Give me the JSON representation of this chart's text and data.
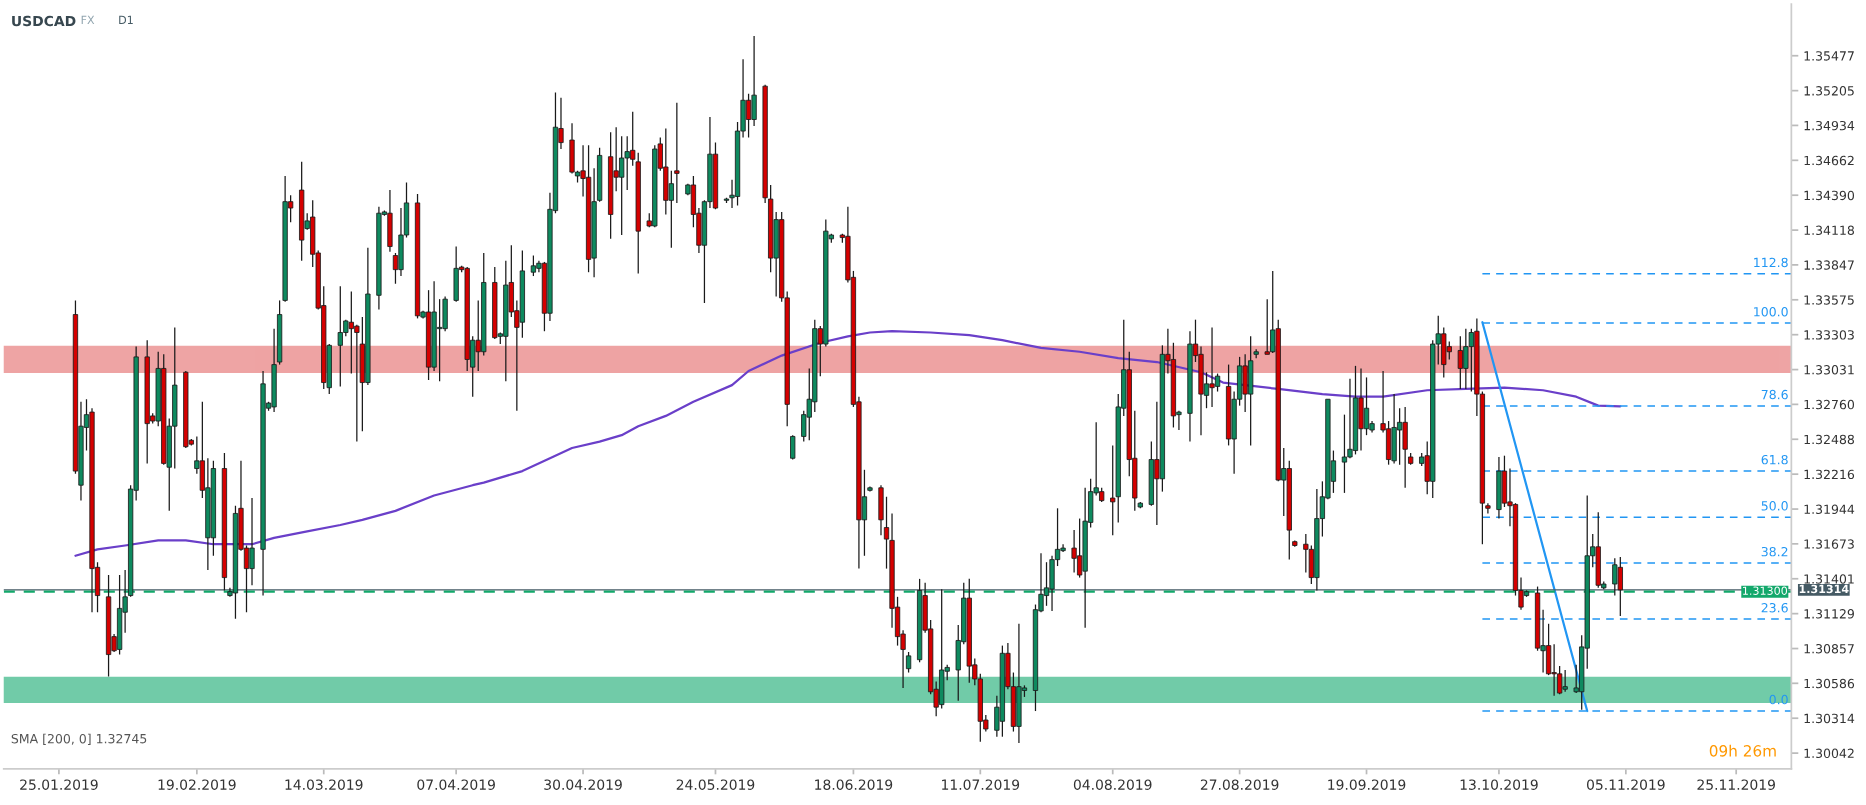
{
  "chart_data": {
    "type": "candlestick",
    "title": "USDCAD",
    "annotations": [
      "FX",
      "D1",
      "SMA [200, 0] 1.32745",
      "09h 26m"
    ],
    "x": [
      "2019-01-28",
      "2019-01-29",
      "2019-01-30",
      "2019-01-31",
      "2019-02-01",
      "2019-02-03",
      "2019-02-04",
      "2019-02-05",
      "2019-02-06",
      "2019-02-07",
      "2019-02-08",
      "2019-02-10",
      "2019-02-11",
      "2019-02-12",
      "2019-02-13",
      "2019-02-14",
      "2019-02-15",
      "2019-02-17",
      "2019-02-18",
      "2019-02-19",
      "2019-02-20",
      "2019-02-21",
      "2019-02-22",
      "2019-02-24",
      "2019-02-25",
      "2019-02-26",
      "2019-02-27",
      "2019-02-28",
      "2019-03-01",
      "2019-03-03",
      "2019-03-04",
      "2019-03-05",
      "2019-03-06",
      "2019-03-07",
      "2019-03-08",
      "2019-03-10",
      "2019-03-11",
      "2019-03-12",
      "2019-03-13",
      "2019-03-14",
      "2019-03-15",
      "2019-03-17",
      "2019-03-18",
      "2019-03-19",
      "2019-03-20",
      "2019-03-21",
      "2019-03-22",
      "2019-03-24",
      "2019-03-25",
      "2019-03-26",
      "2019-03-27",
      "2019-03-28",
      "2019-03-29",
      "2019-03-31",
      "2019-04-01",
      "2019-04-02",
      "2019-04-03",
      "2019-04-04",
      "2019-04-05",
      "2019-04-07",
      "2019-04-08",
      "2019-04-09",
      "2019-04-10",
      "2019-04-11",
      "2019-04-12",
      "2019-04-14",
      "2019-04-15",
      "2019-04-16",
      "2019-04-17",
      "2019-04-18",
      "2019-04-19",
      "2019-04-21",
      "2019-04-22",
      "2019-04-23",
      "2019-04-24",
      "2019-04-25",
      "2019-04-26",
      "2019-04-28",
      "2019-04-29",
      "2019-04-30",
      "2019-05-01",
      "2019-05-02",
      "2019-05-03",
      "2019-05-05",
      "2019-05-06",
      "2019-05-07",
      "2019-05-08",
      "2019-05-09",
      "2019-05-10",
      "2019-05-12",
      "2019-05-13",
      "2019-05-14",
      "2019-05-15",
      "2019-05-16",
      "2019-05-17",
      "2019-05-19",
      "2019-05-20",
      "2019-05-21",
      "2019-05-22",
      "2019-05-23",
      "2019-05-24",
      "2019-05-26",
      "2019-05-27",
      "2019-05-28",
      "2019-05-29",
      "2019-05-30",
      "2019-05-31",
      "2019-06-02",
      "2019-06-03",
      "2019-06-04",
      "2019-06-05",
      "2019-06-06",
      "2019-06-07",
      "2019-06-09",
      "2019-06-10",
      "2019-06-11",
      "2019-06-12",
      "2019-06-13",
      "2019-06-14",
      "2019-06-16",
      "2019-06-17",
      "2019-06-18",
      "2019-06-19",
      "2019-06-20",
      "2019-06-21",
      "2019-06-23",
      "2019-06-24",
      "2019-06-25",
      "2019-06-26",
      "2019-06-27",
      "2019-06-28",
      "2019-06-30",
      "2019-07-01",
      "2019-07-02",
      "2019-07-03",
      "2019-07-04",
      "2019-07-05",
      "2019-07-07",
      "2019-07-08",
      "2019-07-09",
      "2019-07-10",
      "2019-07-11",
      "2019-07-12",
      "2019-07-14",
      "2019-07-15",
      "2019-07-16",
      "2019-07-17",
      "2019-07-18",
      "2019-07-19",
      "2019-07-21",
      "2019-07-22",
      "2019-07-23",
      "2019-07-24",
      "2019-07-25",
      "2019-07-26",
      "2019-07-28",
      "2019-07-29",
      "2019-07-30",
      "2019-07-31",
      "2019-08-01",
      "2019-08-02",
      "2019-08-04",
      "2019-08-05",
      "2019-08-06",
      "2019-08-07",
      "2019-08-08",
      "2019-08-09",
      "2019-08-11",
      "2019-08-12",
      "2019-08-13",
      "2019-08-14",
      "2019-08-15",
      "2019-08-16",
      "2019-08-18",
      "2019-08-19",
      "2019-08-20",
      "2019-08-21",
      "2019-08-22",
      "2019-08-23",
      "2019-08-25",
      "2019-08-26",
      "2019-08-27",
      "2019-08-28",
      "2019-08-29",
      "2019-08-30",
      "2019-09-01",
      "2019-09-02",
      "2019-09-03",
      "2019-09-04",
      "2019-09-05",
      "2019-09-06",
      "2019-09-08",
      "2019-09-09",
      "2019-09-10",
      "2019-09-11",
      "2019-09-12",
      "2019-09-13",
      "2019-09-15",
      "2019-09-16",
      "2019-09-17",
      "2019-09-18",
      "2019-09-19",
      "2019-09-20",
      "2019-09-22",
      "2019-09-23",
      "2019-09-24",
      "2019-09-25",
      "2019-09-26",
      "2019-09-27",
      "2019-09-29",
      "2019-09-30",
      "2019-10-01",
      "2019-10-02",
      "2019-10-03",
      "2019-10-04",
      "2019-10-06",
      "2019-10-07",
      "2019-10-08",
      "2019-10-09",
      "2019-10-10",
      "2019-10-11",
      "2019-10-13",
      "2019-10-14",
      "2019-10-15",
      "2019-10-16",
      "2019-10-17",
      "2019-10-18",
      "2019-10-20",
      "2019-10-21",
      "2019-10-22",
      "2019-10-23",
      "2019-10-24",
      "2019-10-25",
      "2019-10-27",
      "2019-10-28",
      "2019-10-29",
      "2019-10-30",
      "2019-10-31",
      "2019-11-01",
      "2019-11-03",
      "2019-11-04"
    ],
    "ohlc": [
      [
        1.3346,
        1.3357,
        1.3222,
        1.3224
      ],
      [
        1.3213,
        1.3278,
        1.3201,
        1.3259
      ],
      [
        1.3258,
        1.328,
        1.324,
        1.3268
      ],
      [
        1.327,
        1.3273,
        1.3114,
        1.3148
      ],
      [
        1.3149,
        1.3153,
        1.3114,
        1.3127
      ],
      [
        1.3126,
        1.3143,
        1.3064,
        1.3081
      ],
      [
        1.3095,
        1.3097,
        1.3083,
        1.3084
      ],
      [
        1.3085,
        1.3143,
        1.3081,
        1.3117
      ],
      [
        1.3114,
        1.3147,
        1.3098,
        1.3126
      ],
      [
        1.3127,
        1.3213,
        1.3126,
        1.321
      ],
      [
        1.3209,
        1.3321,
        1.3201,
        1.3313
      ],
      [
        1.3313,
        1.3326,
        1.323,
        1.3261
      ],
      [
        1.3267,
        1.3269,
        1.3261,
        1.3263
      ],
      [
        1.3263,
        1.3317,
        1.3259,
        1.3304
      ],
      [
        1.3304,
        1.3315,
        1.3229,
        1.323
      ],
      [
        1.3227,
        1.3265,
        1.3193,
        1.3259
      ],
      [
        1.3259,
        1.3336,
        1.3226,
        1.3291
      ],
      [
        1.3301,
        1.3302,
        1.3242,
        1.3243
      ],
      [
        1.3248,
        1.3249,
        1.3244,
        1.3245
      ],
      [
        1.3226,
        1.3251,
        1.3222,
        1.3232
      ],
      [
        1.3232,
        1.3278,
        1.3203,
        1.3209
      ],
      [
        1.3172,
        1.3234,
        1.3147,
        1.3211
      ],
      [
        1.3172,
        1.3232,
        1.3158,
        1.3226
      ],
      [
        1.3226,
        1.3238,
        1.3131,
        1.3141
      ],
      [
        1.3127,
        1.3133,
        1.3126,
        1.313
      ],
      [
        1.3129,
        1.3197,
        1.3109,
        1.3191
      ],
      [
        1.3195,
        1.3232,
        1.3162,
        1.3163
      ],
      [
        1.3164,
        1.3166,
        1.3114,
        1.3148
      ],
      [
        1.3148,
        1.3203,
        1.3135,
        1.3164
      ],
      [
        1.3163,
        1.3302,
        1.3127,
        1.3292
      ],
      [
        1.3273,
        1.3278,
        1.3271,
        1.3277
      ],
      [
        1.3274,
        1.3335,
        1.327,
        1.3307
      ],
      [
        1.3309,
        1.3357,
        1.3307,
        1.3346
      ],
      [
        1.3357,
        1.3454,
        1.3356,
        1.3434
      ],
      [
        1.3434,
        1.3439,
        1.3418,
        1.3429
      ],
      [
        1.3443,
        1.3465,
        1.3388,
        1.3404
      ],
      [
        1.3413,
        1.3425,
        1.3412,
        1.3419
      ],
      [
        1.3422,
        1.3435,
        1.3383,
        1.3393
      ],
      [
        1.3394,
        1.3396,
        1.335,
        1.3351
      ],
      [
        1.3353,
        1.3368,
        1.3288,
        1.3293
      ],
      [
        1.3289,
        1.3323,
        1.3284,
        1.3322
      ],
      [
        1.3322,
        1.3368,
        1.329,
        1.3332
      ],
      [
        1.3332,
        1.3342,
        1.3329,
        1.3341
      ],
      [
        1.334,
        1.3364,
        1.33,
        1.3335
      ],
      [
        1.3337,
        1.3338,
        1.3247,
        1.3332
      ],
      [
        1.3323,
        1.3344,
        1.3255,
        1.3293
      ],
      [
        1.3293,
        1.3398,
        1.3291,
        1.3362
      ],
      [
        1.3361,
        1.343,
        1.335,
        1.3425
      ],
      [
        1.3424,
        1.3427,
        1.3423,
        1.3426
      ],
      [
        1.3425,
        1.3443,
        1.3395,
        1.3399
      ],
      [
        1.3392,
        1.3394,
        1.337,
        1.3381
      ],
      [
        1.3381,
        1.3429,
        1.3376,
        1.3408
      ],
      [
        1.3408,
        1.3449,
        1.3406,
        1.3433
      ],
      [
        1.3433,
        1.344,
        1.3343,
        1.3345
      ],
      [
        1.3344,
        1.3349,
        1.3343,
        1.3348
      ],
      [
        1.3348,
        1.3365,
        1.3295,
        1.3305
      ],
      [
        1.3305,
        1.3372,
        1.3302,
        1.3348
      ],
      [
        1.3335,
        1.3358,
        1.3294,
        1.3336
      ],
      [
        1.3335,
        1.336,
        1.3333,
        1.3358
      ],
      [
        1.3357,
        1.3399,
        1.3356,
        1.3382
      ],
      [
        1.3383,
        1.3384,
        1.3379,
        1.3381
      ],
      [
        1.3382,
        1.3383,
        1.3302,
        1.3311
      ],
      [
        1.3305,
        1.3329,
        1.3282,
        1.3326
      ],
      [
        1.3326,
        1.3357,
        1.3302,
        1.3317
      ],
      [
        1.3317,
        1.3394,
        1.3314,
        1.3371
      ],
      [
        1.3371,
        1.3383,
        1.3327,
        1.3328
      ],
      [
        1.3329,
        1.3332,
        1.3323,
        1.3331
      ],
      [
        1.3329,
        1.3388,
        1.3294,
        1.3369
      ],
      [
        1.3371,
        1.34,
        1.3344,
        1.3348
      ],
      [
        1.3349,
        1.3357,
        1.3271,
        1.3336
      ],
      [
        1.334,
        1.3396,
        1.3328,
        1.338
      ],
      [
        1.3379,
        1.3392,
        1.3376,
        1.3384
      ],
      [
        1.3382,
        1.3388,
        1.3379,
        1.3386
      ],
      [
        1.3386,
        1.3387,
        1.3333,
        1.3347
      ],
      [
        1.3347,
        1.3441,
        1.3341,
        1.3428
      ],
      [
        1.3427,
        1.3519,
        1.3425,
        1.3492
      ],
      [
        1.3491,
        1.3515,
        1.3475,
        1.348
      ],
      [
        1.3482,
        1.3495,
        1.3456,
        1.3457
      ],
      [
        1.3454,
        1.3458,
        1.3449,
        1.3457
      ],
      [
        1.3458,
        1.3478,
        1.3438,
        1.3452
      ],
      [
        1.3453,
        1.3478,
        1.3379,
        1.3389
      ],
      [
        1.339,
        1.346,
        1.3375,
        1.3434
      ],
      [
        1.3435,
        1.3476,
        1.3434,
        1.347
      ],
      [
        1.3469,
        1.3488,
        1.3405,
        1.3424
      ],
      [
        1.3458,
        1.3492,
        1.3442,
        1.3453
      ],
      [
        1.3453,
        1.3485,
        1.3408,
        1.3468
      ],
      [
        1.3468,
        1.3485,
        1.3443,
        1.3473
      ],
      [
        1.3474,
        1.3504,
        1.3462,
        1.3467
      ],
      [
        1.3465,
        1.3472,
        1.3378,
        1.3411
      ],
      [
        1.3419,
        1.3425,
        1.3414,
        1.3415
      ],
      [
        1.3415,
        1.3478,
        1.3414,
        1.3475
      ],
      [
        1.3479,
        1.3484,
        1.3458,
        1.346
      ],
      [
        1.3461,
        1.3491,
        1.3424,
        1.3435
      ],
      [
        1.3435,
        1.3458,
        1.3398,
        1.3448
      ],
      [
        1.3458,
        1.3511,
        1.3433,
        1.3456
      ],
      [
        1.344,
        1.3448,
        1.3439,
        1.3447
      ],
      [
        1.3447,
        1.3454,
        1.3414,
        1.3424
      ],
      [
        1.3425,
        1.3429,
        1.3394,
        1.34
      ],
      [
        1.34,
        1.3435,
        1.3355,
        1.3434
      ],
      [
        1.3434,
        1.35,
        1.3429,
        1.3471
      ],
      [
        1.3471,
        1.348,
        1.3428,
        1.3429
      ],
      [
        1.3435,
        1.3437,
        1.3433,
        1.3436
      ],
      [
        1.3437,
        1.3451,
        1.3429,
        1.3439
      ],
      [
        1.3438,
        1.3496,
        1.3431,
        1.3489
      ],
      [
        1.3489,
        1.3545,
        1.3484,
        1.3513
      ],
      [
        1.3513,
        1.3518,
        1.3484,
        1.3498
      ],
      [
        1.3498,
        1.3563,
        1.3493,
        1.3517
      ],
      [
        1.3524,
        1.3525,
        1.3433,
        1.3437
      ],
      [
        1.3436,
        1.3447,
        1.3379,
        1.339
      ],
      [
        1.339,
        1.3426,
        1.336,
        1.342
      ],
      [
        1.342,
        1.3426,
        1.3356,
        1.3359
      ],
      [
        1.3359,
        1.3364,
        1.3259,
        1.3276
      ],
      [
        1.3234,
        1.3252,
        1.3233,
        1.3251
      ],
      [
        1.3251,
        1.3271,
        1.3247,
        1.3268
      ],
      [
        1.3266,
        1.3304,
        1.3248,
        1.328
      ],
      [
        1.3278,
        1.3342,
        1.327,
        1.3335
      ],
      [
        1.3335,
        1.3337,
        1.3298,
        1.3323
      ],
      [
        1.3323,
        1.342,
        1.3321,
        1.3411
      ],
      [
        1.3405,
        1.3409,
        1.3402,
        1.3408
      ],
      [
        1.3408,
        1.3409,
        1.3402,
        1.3406
      ],
      [
        1.3407,
        1.343,
        1.3371,
        1.3373
      ],
      [
        1.3375,
        1.338,
        1.3274,
        1.3276
      ],
      [
        1.3278,
        1.3282,
        1.3148,
        1.3186
      ],
      [
        1.3186,
        1.3225,
        1.3158,
        1.3204
      ],
      [
        1.3209,
        1.3212,
        1.3208,
        1.3211
      ],
      [
        1.3211,
        1.3213,
        1.3174,
        1.3186
      ],
      [
        1.318,
        1.3204,
        1.3148,
        1.3171
      ],
      [
        1.317,
        1.3191,
        1.3102,
        1.3117
      ],
      [
        1.3118,
        1.3126,
        1.3088,
        1.3095
      ],
      [
        1.3097,
        1.31,
        1.3055,
        1.3085
      ],
      [
        1.307,
        1.3083,
        1.3067,
        1.308
      ],
      [
        1.3077,
        1.314,
        1.3075,
        1.3131
      ],
      [
        1.3127,
        1.3137,
        1.3098,
        1.31
      ],
      [
        1.3101,
        1.3108,
        1.305,
        1.3052
      ],
      [
        1.3054,
        1.306,
        1.3033,
        1.304
      ],
      [
        1.3042,
        1.3132,
        1.3039,
        1.3069
      ],
      [
        1.3068,
        1.3073,
        1.3061,
        1.3071
      ],
      [
        1.3069,
        1.3104,
        1.3045,
        1.3092
      ],
      [
        1.3091,
        1.3137,
        1.3089,
        1.3125
      ],
      [
        1.3125,
        1.314,
        1.3059,
        1.3072
      ],
      [
        1.3073,
        1.3078,
        1.3057,
        1.3062
      ],
      [
        1.3062,
        1.3066,
        1.3013,
        1.3029
      ],
      [
        1.303,
        1.3034,
        1.3021,
        1.3023
      ],
      [
        1.3022,
        1.3049,
        1.3017,
        1.304
      ],
      [
        1.3029,
        1.3088,
        1.3017,
        1.3082
      ],
      [
        1.3082,
        1.309,
        1.3054,
        1.3056
      ],
      [
        1.3056,
        1.3067,
        1.3021,
        1.3025
      ],
      [
        1.3025,
        1.3105,
        1.3012,
        1.3056
      ],
      [
        1.3053,
        1.3057,
        1.3048,
        1.3055
      ],
      [
        1.3053,
        1.312,
        1.3037,
        1.3116
      ],
      [
        1.3115,
        1.316,
        1.3114,
        1.3128
      ],
      [
        1.3127,
        1.3153,
        1.3119,
        1.3133
      ],
      [
        1.3132,
        1.3158,
        1.3115,
        1.3155
      ],
      [
        1.3155,
        1.3195,
        1.315,
        1.3163
      ],
      [
        1.3162,
        1.3167,
        1.3161,
        1.3164
      ],
      [
        1.3164,
        1.3178,
        1.3145,
        1.3156
      ],
      [
        1.3158,
        1.3187,
        1.3141,
        1.3143
      ],
      [
        1.3146,
        1.3211,
        1.3102,
        1.3185
      ],
      [
        1.3184,
        1.3218,
        1.318,
        1.3208
      ],
      [
        1.3207,
        1.3262,
        1.3205,
        1.3211
      ],
      [
        1.3208,
        1.3211,
        1.32,
        1.3201
      ],
      [
        1.3203,
        1.3244,
        1.3174,
        1.32
      ],
      [
        1.3204,
        1.3284,
        1.3184,
        1.3274
      ],
      [
        1.3273,
        1.3342,
        1.3267,
        1.3303
      ],
      [
        1.3303,
        1.3317,
        1.322,
        1.3233
      ],
      [
        1.3234,
        1.3271,
        1.3193,
        1.3203
      ],
      [
        1.3196,
        1.32,
        1.3195,
        1.3199
      ],
      [
        1.3198,
        1.3247,
        1.3197,
        1.3233
      ],
      [
        1.3233,
        1.3278,
        1.3182,
        1.3218
      ],
      [
        1.3218,
        1.3322,
        1.3208,
        1.3315
      ],
      [
        1.3315,
        1.3335,
        1.33,
        1.331
      ],
      [
        1.3311,
        1.3324,
        1.3258,
        1.3267
      ],
      [
        1.3268,
        1.3271,
        1.3256,
        1.327
      ],
      [
        1.3269,
        1.3333,
        1.3247,
        1.3323
      ],
      [
        1.3323,
        1.3342,
        1.3309,
        1.3314
      ],
      [
        1.3315,
        1.3321,
        1.3252,
        1.3284
      ],
      [
        1.3283,
        1.3301,
        1.3273,
        1.3292
      ],
      [
        1.3292,
        1.3336,
        1.3274,
        1.3289
      ],
      [
        1.329,
        1.33,
        1.3286,
        1.3298
      ],
      [
        1.329,
        1.3307,
        1.3244,
        1.3249
      ],
      [
        1.3249,
        1.3286,
        1.3222,
        1.328
      ],
      [
        1.328,
        1.3313,
        1.3275,
        1.3306
      ],
      [
        1.3306,
        1.3315,
        1.327,
        1.3284
      ],
      [
        1.3284,
        1.3329,
        1.3244,
        1.331
      ],
      [
        1.3315,
        1.3319,
        1.3312,
        1.3317
      ],
      [
        1.3317,
        1.3358,
        1.3315,
        1.3315
      ],
      [
        1.3317,
        1.338,
        1.3316,
        1.3334
      ],
      [
        1.3335,
        1.3342,
        1.3216,
        1.3217
      ],
      [
        1.3217,
        1.3242,
        1.3189,
        1.3226
      ],
      [
        1.3226,
        1.3232,
        1.3155,
        1.3178
      ],
      [
        1.3169,
        1.317,
        1.3165,
        1.3166
      ],
      [
        1.3167,
        1.3175,
        1.3145,
        1.3163
      ],
      [
        1.3163,
        1.3166,
        1.3136,
        1.3141
      ],
      [
        1.3141,
        1.321,
        1.3131,
        1.3187
      ],
      [
        1.3187,
        1.3216,
        1.3173,
        1.3204
      ],
      [
        1.3203,
        1.328,
        1.3202,
        1.328
      ],
      [
        1.3216,
        1.324,
        1.3207,
        1.3232
      ],
      [
        1.3231,
        1.3268,
        1.3207,
        1.3235
      ],
      [
        1.3235,
        1.3296,
        1.3234,
        1.3241
      ],
      [
        1.324,
        1.3306,
        1.3237,
        1.3281
      ],
      [
        1.3281,
        1.3304,
        1.324,
        1.3257
      ],
      [
        1.3257,
        1.3297,
        1.3252,
        1.3273
      ],
      [
        1.3256,
        1.3263,
        1.3254,
        1.3261
      ],
      [
        1.3261,
        1.3302,
        1.3254,
        1.3256
      ],
      [
        1.3257,
        1.3263,
        1.3229,
        1.3233
      ],
      [
        1.3232,
        1.3284,
        1.323,
        1.3258
      ],
      [
        1.3256,
        1.3273,
        1.3229,
        1.3262
      ],
      [
        1.3262,
        1.3274,
        1.3211,
        1.3241
      ],
      [
        1.3235,
        1.3238,
        1.3229,
        1.323
      ],
      [
        1.323,
        1.3238,
        1.3228,
        1.3235
      ],
      [
        1.3236,
        1.3247,
        1.3206,
        1.3216
      ],
      [
        1.3216,
        1.3326,
        1.3203,
        1.3323
      ],
      [
        1.3323,
        1.3345,
        1.3307,
        1.3331
      ],
      [
        1.3331,
        1.3336,
        1.3297,
        1.3307
      ],
      [
        1.3321,
        1.3325,
        1.3311,
        1.3317
      ],
      [
        1.3318,
        1.3329,
        1.3288,
        1.3304
      ],
      [
        1.3304,
        1.3335,
        1.3288,
        1.3321
      ],
      [
        1.3321,
        1.3335,
        1.3286,
        1.3332
      ],
      [
        1.3333,
        1.3343,
        1.3267,
        1.3284
      ],
      [
        1.3284,
        1.3286,
        1.3167,
        1.3199
      ],
      [
        1.3197,
        1.3199,
        1.3191,
        1.3195
      ],
      [
        1.3194,
        1.3235,
        1.3187,
        1.3224
      ],
      [
        1.3224,
        1.3236,
        1.3196,
        1.3199
      ],
      [
        1.32,
        1.3226,
        1.3181,
        1.3197
      ],
      [
        1.3198,
        1.3199,
        1.3127,
        1.3131
      ],
      [
        1.3131,
        1.3141,
        1.3116,
        1.3118
      ],
      [
        1.3127,
        1.3131,
        1.3126,
        1.313
      ],
      [
        1.3129,
        1.3134,
        1.3084,
        1.3086
      ],
      [
        1.3084,
        1.3116,
        1.3067,
        1.3088
      ],
      [
        1.3088,
        1.3105,
        1.3065,
        1.3066
      ],
      [
        1.3067,
        1.3089,
        1.3049,
        1.3066
      ],
      [
        1.3066,
        1.3072,
        1.305,
        1.3051
      ],
      [
        1.3054,
        1.3069,
        1.3052,
        1.3056
      ],
      [
        1.3052,
        1.3073,
        1.3051,
        1.3055
      ],
      [
        1.3052,
        1.3096,
        1.3038,
        1.3087
      ],
      [
        1.3086,
        1.3205,
        1.307,
        1.3158
      ],
      [
        1.3158,
        1.3175,
        1.3149,
        1.3165
      ],
      [
        1.3165,
        1.3192,
        1.3133,
        1.3135
      ],
      [
        1.3133,
        1.3138,
        1.3132,
        1.3136
      ],
      [
        1.3136,
        1.3156,
        1.3127,
        1.3151
      ],
      [
        1.3149,
        1.3157,
        1.3111,
        1.31314
      ]
    ],
    "series": [
      {
        "type": "line",
        "color": "#6a3fc9",
        "line_style": "solid",
        "x": [
          "2019-01-28",
          "2019-02-01",
          "2019-02-06",
          "2019-02-12",
          "2019-02-17",
          "2019-02-22",
          "2019-03-01",
          "2019-03-05",
          "2019-03-11",
          "2019-03-17",
          "2019-03-21",
          "2019-03-27",
          "2019-04-03",
          "2019-04-10",
          "2019-04-12",
          "2019-04-19",
          "2019-04-24",
          "2019-04-28",
          "2019-05-03",
          "2019-05-07",
          "2019-05-10",
          "2019-05-15",
          "2019-05-20",
          "2019-05-27",
          "2019-05-30",
          "2019-06-05",
          "2019-06-12",
          "2019-06-17",
          "2019-06-21",
          "2019-06-25",
          "2019-07-02",
          "2019-07-09",
          "2019-07-15",
          "2019-07-22",
          "2019-07-29",
          "2019-08-05",
          "2019-08-12",
          "2019-08-20",
          "2019-08-24",
          "2019-09-03",
          "2019-09-11",
          "2019-09-17",
          "2019-09-22",
          "2019-09-30",
          "2019-10-07",
          "2019-10-14",
          "2019-10-21",
          "2019-10-27",
          "2019-10-31",
          "2019-11-04"
        ],
        "values": [
          1.3158,
          1.3163,
          1.3166,
          1.317,
          1.317,
          1.3167,
          1.3167,
          1.3172,
          1.3177,
          1.3182,
          1.3186,
          1.3193,
          1.3205,
          1.3213,
          1.3215,
          1.3224,
          1.3234,
          1.3242,
          1.3247,
          1.3252,
          1.3259,
          1.3267,
          1.3278,
          1.3291,
          1.3302,
          1.3314,
          1.3324,
          1.3329,
          1.3332,
          1.3333,
          1.3332,
          1.333,
          1.3326,
          1.332,
          1.3317,
          1.3312,
          1.3309,
          1.3301,
          1.3293,
          1.3288,
          1.3284,
          1.3282,
          1.3282,
          1.3287,
          1.3288,
          1.3289,
          1.3287,
          1.3282,
          1.3275,
          1.32745
        ]
      },
      {
        "type": "line",
        "color": "#2196f3",
        "line_style": "solid",
        "x": [
          "2019-10-10",
          "2019-10-29"
        ],
        "values": [
          1.334,
          1.3037
        ]
      },
      {
        "type": "line",
        "name": "112.8",
        "color": "#2196f3",
        "line_style": "dashed",
        "x": [
          "2019-10-10",
          "2019-12-05"
        ],
        "values": [
          1.33778,
          1.33778
        ]
      },
      {
        "type": "line",
        "name": "100.0",
        "color": "#2196f3",
        "line_style": "dashed",
        "x": [
          "2019-10-10",
          "2019-12-05"
        ],
        "values": [
          1.33394,
          1.33394
        ]
      },
      {
        "type": "line",
        "name": "78.6",
        "color": "#2196f3",
        "line_style": "dashed",
        "x": [
          "2019-10-10",
          "2019-12-05"
        ],
        "values": [
          1.32748,
          1.32748
        ]
      },
      {
        "type": "line",
        "name": "61.8",
        "color": "#2196f3",
        "line_style": "dashed",
        "x": [
          "2019-10-10",
          "2019-12-05"
        ],
        "values": [
          1.32241,
          1.32241
        ]
      },
      {
        "type": "line",
        "name": "50.0",
        "color": "#2196f3",
        "line_style": "dashed",
        "x": [
          "2019-10-10",
          "2019-12-05"
        ],
        "values": [
          1.31881,
          1.31881
        ]
      },
      {
        "type": "line",
        "name": "38.2",
        "color": "#2196f3",
        "line_style": "dashed",
        "x": [
          "2019-10-10",
          "2019-12-05"
        ],
        "values": [
          1.31524,
          1.31524
        ]
      },
      {
        "type": "line",
        "name": "23.6",
        "color": "#2196f3",
        "line_style": "dashed",
        "x": [
          "2019-10-10",
          "2019-12-05"
        ],
        "values": [
          1.31087,
          1.31087
        ]
      },
      {
        "type": "line",
        "name": "0.0",
        "color": "#2196f3",
        "line_style": "dashed",
        "x": [
          "2019-10-10",
          "2019-12-05"
        ],
        "values": [
          1.30371,
          1.30371
        ]
      }
    ],
    "bands": [
      {
        "axis": "y",
        "from": 1.3301,
        "to": 1.3321,
        "color": "#e57373"
      },
      {
        "axis": "y",
        "from": 1.3044,
        "to": 1.3063,
        "color": "#26b07a"
      }
    ],
    "ref_lines": [
      {
        "axis": "y",
        "value": 1.31314,
        "label": "1.31314",
        "color": "#455a64",
        "line_style": "solid"
      },
      {
        "axis": "y",
        "value": 1.313,
        "label": "1.31300",
        "color": "#13a86b",
        "line_style": "dashed"
      }
    ],
    "xlim": [
      "2019-01-15",
      "2019-12-05"
    ],
    "xticks": [
      {
        "value": "2019-01-25",
        "label": "25.01.2019"
      },
      {
        "value": "2019-02-19",
        "label": "19.02.2019"
      },
      {
        "value": "2019-03-14",
        "label": "14.03.2019"
      },
      {
        "value": "2019-04-07",
        "label": "07.04.2019"
      },
      {
        "value": "2019-04-30",
        "label": "30.04.2019"
      },
      {
        "value": "2019-05-24",
        "label": "24.05.2019"
      },
      {
        "value": "2019-06-18",
        "label": "18.06.2019"
      },
      {
        "value": "2019-07-11",
        "label": "11.07.2019"
      },
      {
        "value": "2019-08-04",
        "label": "04.08.2019"
      },
      {
        "value": "2019-08-27",
        "label": "27.08.2019"
      },
      {
        "value": "2019-09-19",
        "label": "19.09.2019"
      },
      {
        "value": "2019-10-13",
        "label": "13.10.2019"
      },
      {
        "value": "2019-11-05",
        "label": "05.11.2019"
      },
      {
        "value": "2019-11-25",
        "label": "25.11.2019"
      }
    ],
    "ylim": [
      1.2992,
      1.3588
    ],
    "yticks": [
      1.35477,
      1.35205,
      1.34934,
      1.34662,
      {
        "value": 1.3439,
        "label": "1.34390"
      },
      1.34118,
      1.33847,
      1.33575,
      1.33303,
      1.33031,
      {
        "value": 1.3276,
        "label": "1.32760"
      },
      1.32488,
      1.32216,
      1.31944,
      1.31673,
      1.31401,
      1.31129,
      1.30857,
      1.30586,
      1.30314,
      1.30042
    ]
  }
}
